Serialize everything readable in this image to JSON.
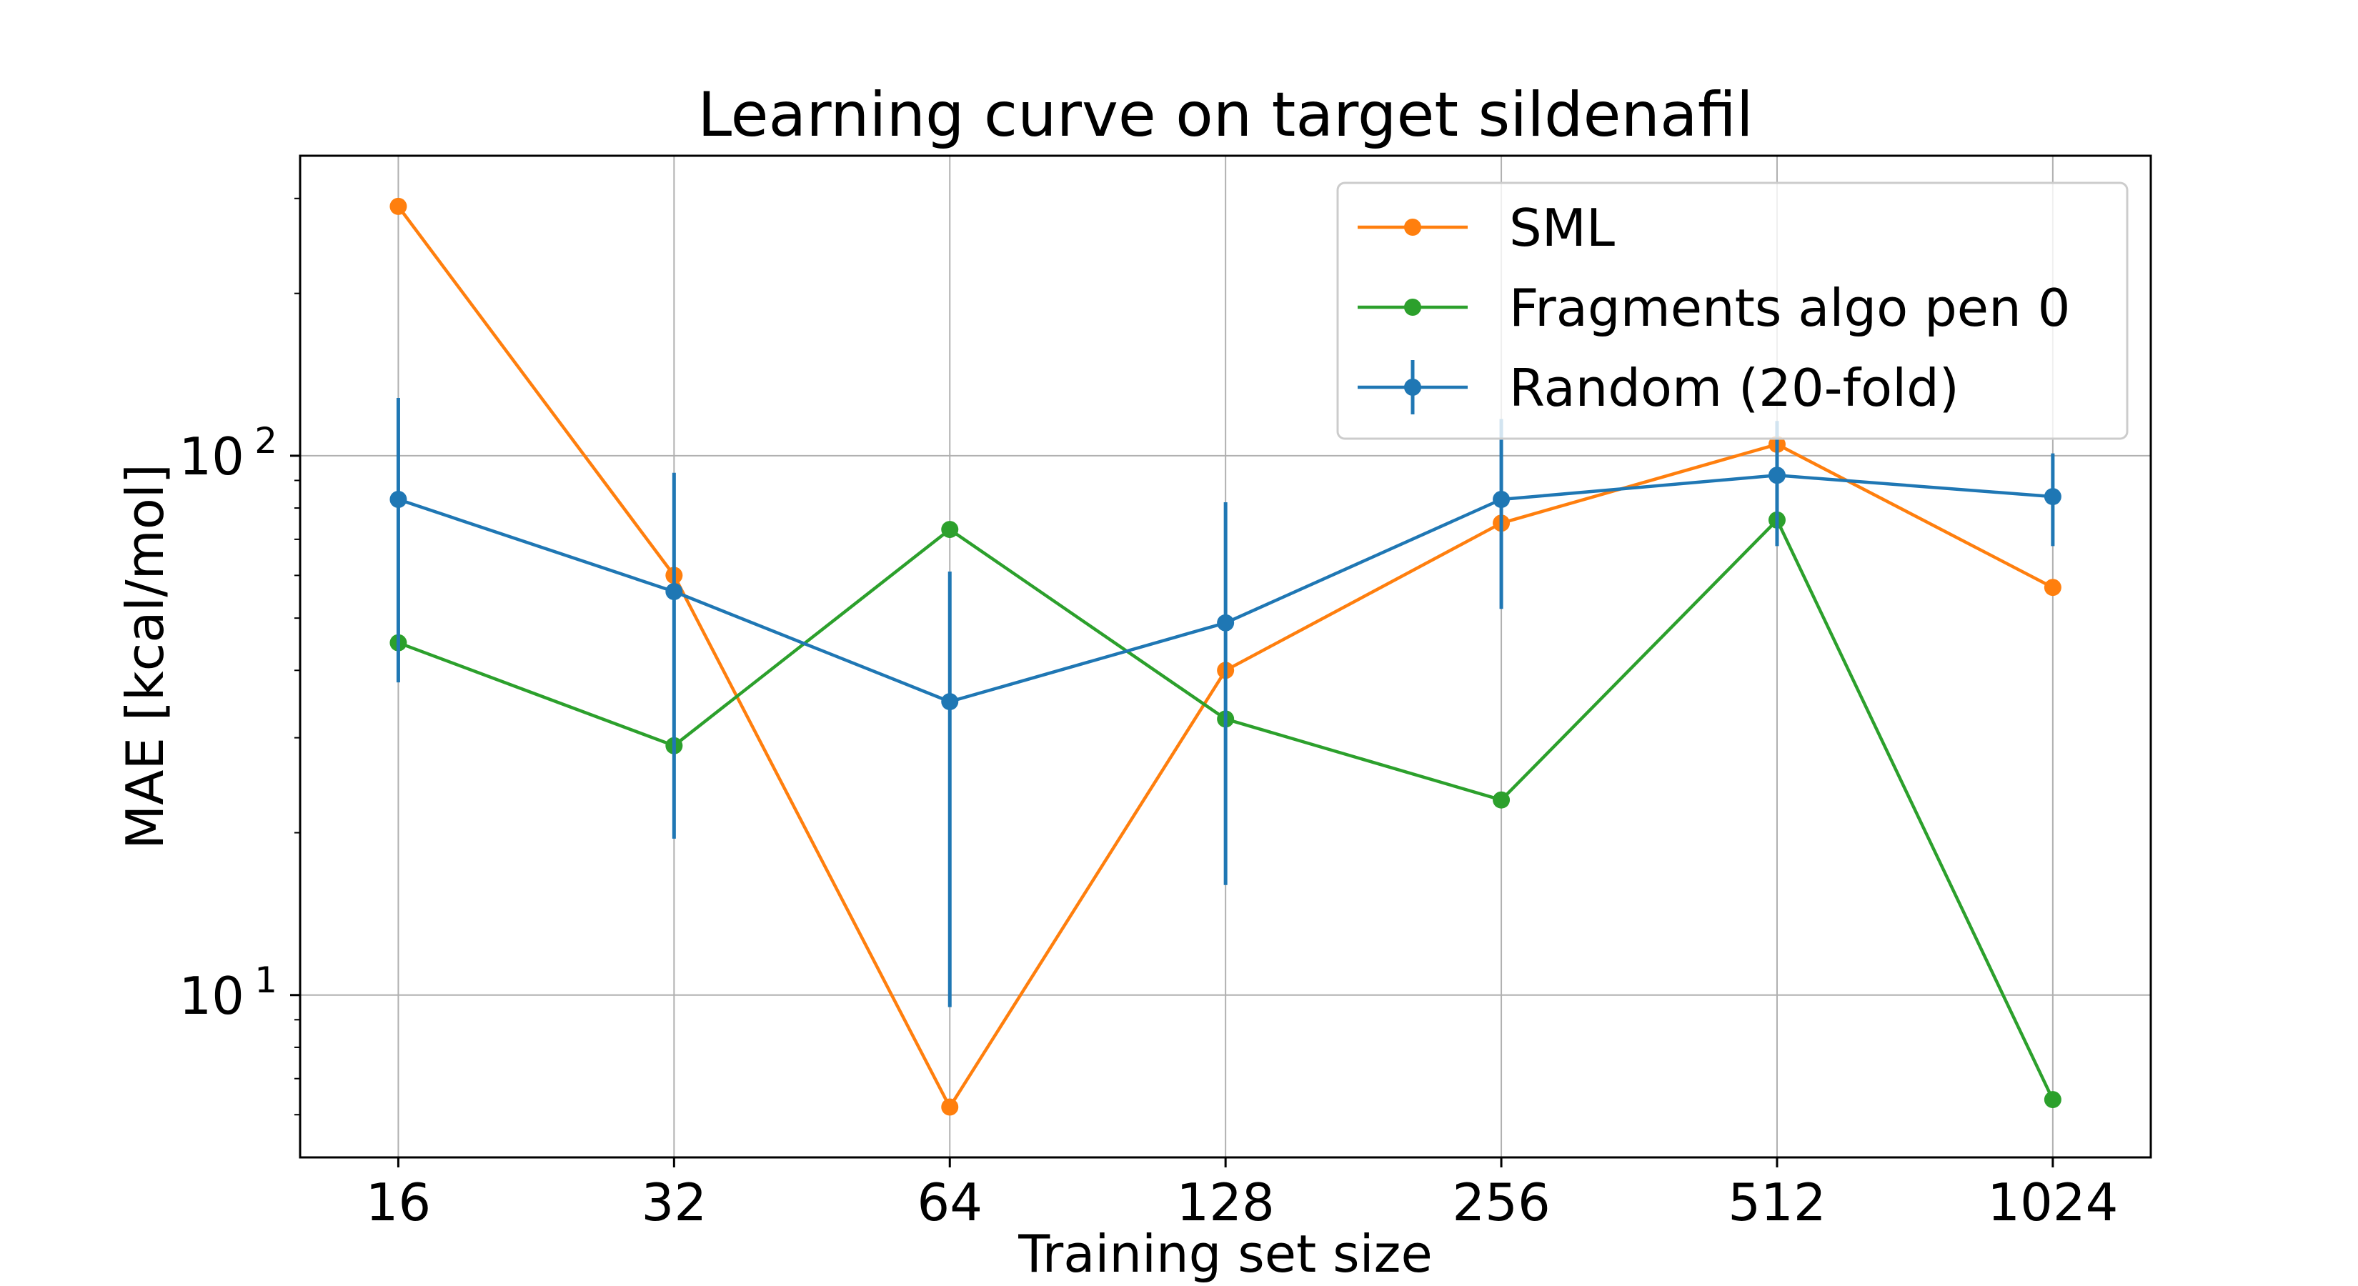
{
  "chart_data": {
    "type": "line",
    "title": "Learning curve on target sildenafil",
    "xlabel": "Training set size",
    "ylabel": "MAE [kcal/mol]",
    "x_scale": "log2",
    "y_scale": "log10",
    "x": [
      16,
      32,
      64,
      128,
      256,
      512,
      1024
    ],
    "x_tick_labels": [
      "16",
      "32",
      "64",
      "128",
      "256",
      "512",
      "1024"
    ],
    "xlim": [
      12.5,
      1310
    ],
    "ylim": [
      5.0,
      360
    ],
    "y_ticks": [
      {
        "value": 10,
        "base": "10",
        "exp": "1"
      },
      {
        "value": 100,
        "base": "10",
        "exp": "2"
      }
    ],
    "grid": true,
    "legend_position": "top-right",
    "series": [
      {
        "name": "SML",
        "color": "#ff7f0e",
        "marker": "circle",
        "values": [
          290,
          60,
          6.2,
          40,
          75,
          105,
          57
        ]
      },
      {
        "name": "Fragments algo pen 0",
        "color": "#2ca02c",
        "marker": "circle",
        "values": [
          45,
          29,
          73,
          32.5,
          23,
          76,
          6.4
        ]
      },
      {
        "name": "Random (20-fold)",
        "color": "#1f77b4",
        "marker": "circle",
        "errorbars": true,
        "values": [
          83,
          56,
          35,
          49,
          83,
          92,
          84
        ],
        "err_low": [
          38,
          19.5,
          9.5,
          16,
          52,
          68,
          68
        ],
        "err_high": [
          128,
          93,
          61,
          82,
          117,
          116,
          101
        ]
      }
    ]
  }
}
